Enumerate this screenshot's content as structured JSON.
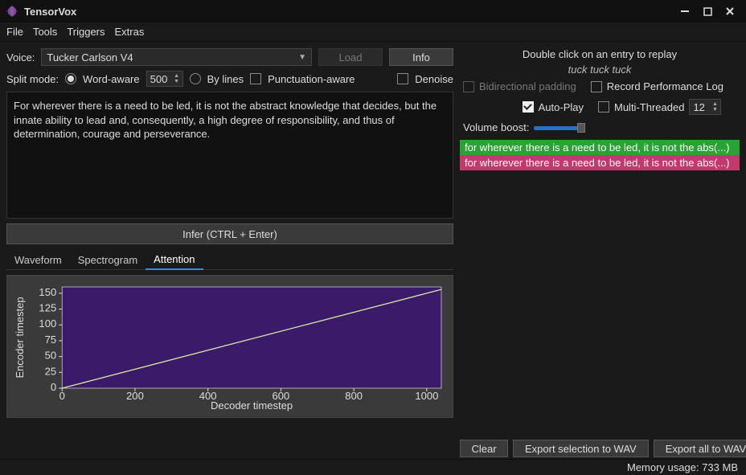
{
  "app": {
    "title": "TensorVox"
  },
  "menu": {
    "file": "File",
    "tools": "Tools",
    "triggers": "Triggers",
    "extras": "Extras"
  },
  "voice": {
    "label": "Voice:",
    "selected": "Tucker Carlson V4",
    "load": "Load",
    "info": "Info"
  },
  "split": {
    "label": "Split mode:",
    "word": "Word-aware",
    "count": "500",
    "bylines": "By lines",
    "punct": "Punctuation-aware",
    "denoise": "Denoise"
  },
  "text": "For wherever there is a need to be led, it is not the abstract knowledge that decides, but the innate ability to lead and, consequently, a high degree of responsibility, and thus of determination, courage and perseverance.",
  "infer": "Infer (CTRL + Enter)",
  "tabs": {
    "waveform": "Waveform",
    "spectrogram": "Spectrogram",
    "attention": "Attention"
  },
  "chart": {
    "type": "line",
    "xlabel": "Decoder timestep",
    "ylabel": "Encoder timestep",
    "xlim": [
      0,
      1040
    ],
    "ylim": [
      0,
      160
    ],
    "xticks": [
      0,
      200,
      400,
      600,
      800,
      1000
    ],
    "yticks": [
      0,
      25,
      50,
      75,
      100,
      125,
      150
    ],
    "bg": "#3a3a3a",
    "plot_bg": "#3b1a6a",
    "line_color": "#d8e8a0",
    "axis_color": "#dddddd",
    "tick_fontsize": 10,
    "label_fontsize": 11,
    "line": [
      [
        0,
        0
      ],
      [
        1040,
        156
      ]
    ]
  },
  "rp": {
    "hint": "Double click on an entry to replay",
    "sub": "tuck tuck tuck",
    "bidi": "Bidirectional padding",
    "rec": "Record Performance Log",
    "auto": "Auto-Play",
    "multi": "Multi-Threaded",
    "threads": "12",
    "vol": "Volume boost:",
    "vol_pct": 100,
    "entries": [
      {
        "text": "for wherever there is a need to be led, it is not the abs(...)",
        "bg": "#2aa336"
      },
      {
        "text": "for wherever there is a need to be led, it is not the abs(...)",
        "bg": "#c23a6c"
      }
    ],
    "clear": "Clear",
    "expsel": "Export selection to WAV",
    "expall": "Export all to WAV"
  },
  "status": {
    "mem": "Memory usage: 733 MB"
  }
}
